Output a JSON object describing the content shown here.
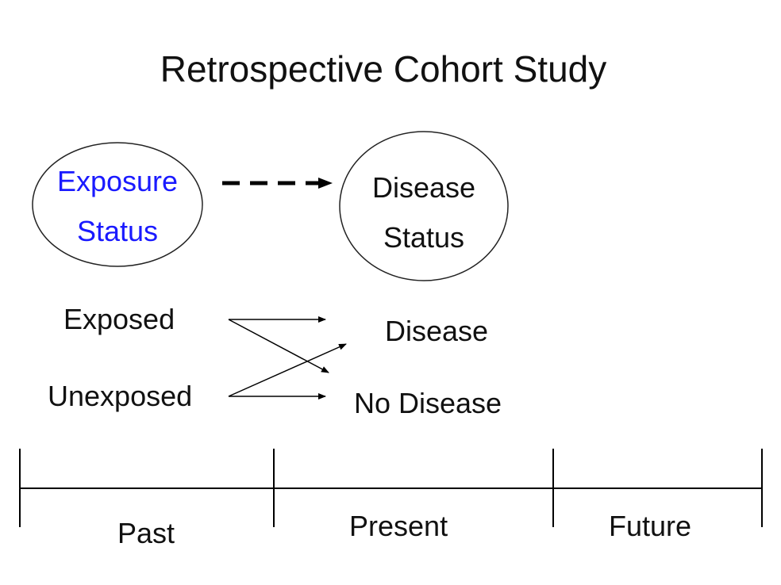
{
  "title": "Retrospective Cohort Study",
  "exposure_node": {
    "line1": "Exposure",
    "line2": "Status",
    "color": "#1a1aff"
  },
  "disease_node": {
    "line1": "Disease",
    "line2": "Status"
  },
  "left_labels": [
    "Exposed",
    "Unexposed"
  ],
  "right_labels": [
    "Disease",
    "No Disease"
  ],
  "timeline": [
    "Past",
    "Present",
    "Future"
  ]
}
